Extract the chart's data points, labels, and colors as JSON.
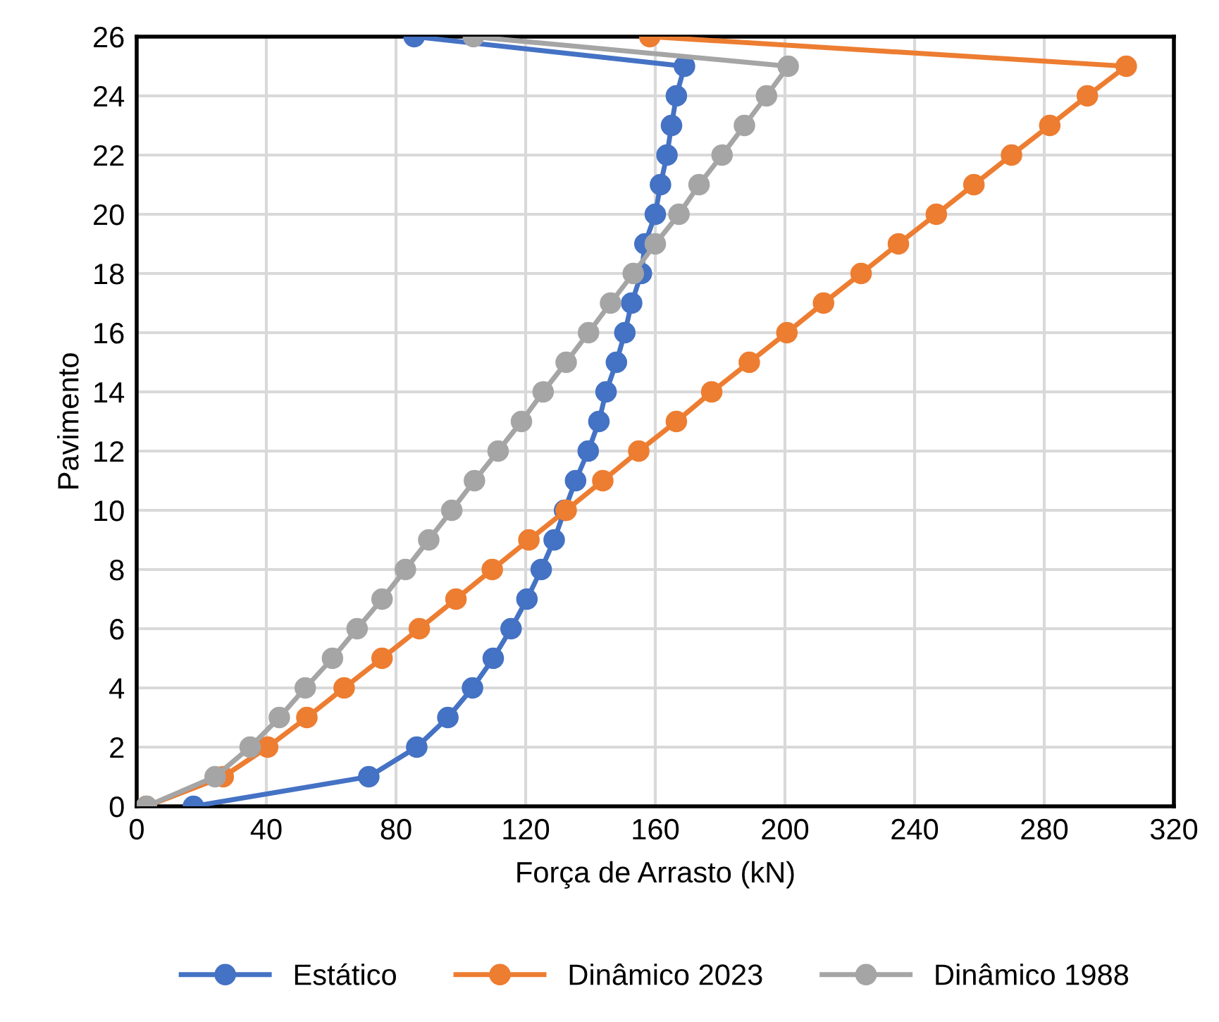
{
  "chart_data": {
    "type": "line",
    "xlabel": "Força de Arrasto (kN)",
    "ylabel": "Pavimento",
    "xlim": [
      0,
      320
    ],
    "xticks": [
      0,
      40,
      80,
      120,
      160,
      200,
      240,
      280,
      320
    ],
    "ylim": [
      0,
      26
    ],
    "yticks": [
      0,
      2,
      4,
      6,
      8,
      10,
      12,
      14,
      16,
      18,
      20,
      22,
      24,
      26
    ],
    "grid": true,
    "legend": "bottom",
    "marker": "circle",
    "line_style": "solid",
    "series": [
      {
        "name": "Estático",
        "color": "#4472c4",
        "x": [
          17.5,
          71.6,
          86.4,
          96,
          103.6,
          110,
          115.5,
          120.4,
          124.8,
          128.8,
          132,
          135.4,
          139.3,
          142.6,
          144.8,
          148,
          150.6,
          152.7,
          155.7,
          156.8,
          160,
          161.6,
          163.6,
          165,
          166.5,
          169,
          85.6
        ],
        "values": [
          0,
          1,
          2,
          3,
          4,
          5,
          6,
          7,
          8,
          9,
          10,
          11,
          12,
          13,
          14,
          15,
          16,
          17,
          18,
          19,
          20,
          21,
          22,
          23,
          24,
          25,
          26
        ]
      },
      {
        "name": "Dinâmico 2023",
        "color": "#ed7d31",
        "x": [
          3,
          26.7,
          40.4,
          52.5,
          64,
          75.7,
          87.2,
          98.5,
          109.7,
          121,
          132.5,
          143.8,
          154.9,
          166.5,
          177.4,
          189,
          200.6,
          211.9,
          223.5,
          235,
          246.7,
          258.3,
          269.9,
          281.7,
          293.3,
          305.3,
          158.3
        ],
        "values": [
          0,
          1,
          2,
          3,
          4,
          5,
          6,
          7,
          8,
          9,
          10,
          11,
          12,
          13,
          14,
          15,
          16,
          17,
          18,
          19,
          20,
          21,
          22,
          23,
          24,
          25,
          26
        ]
      },
      {
        "name": "Dinâmico 1988",
        "color": "#a5a5a5",
        "x": [
          3,
          24.2,
          35,
          44,
          52,
          60.4,
          68,
          75.7,
          82.9,
          90.1,
          97.2,
          104.2,
          111.5,
          118.7,
          125.4,
          132.5,
          139.4,
          146.2,
          153.2,
          160,
          167.3,
          173.5,
          180.6,
          187.5,
          194.3,
          201,
          103.9
        ],
        "values": [
          0,
          1,
          2,
          3,
          4,
          5,
          6,
          7,
          8,
          9,
          10,
          11,
          12,
          13,
          14,
          15,
          16,
          17,
          18,
          19,
          20,
          21,
          22,
          23,
          24,
          25,
          26
        ]
      }
    ]
  }
}
